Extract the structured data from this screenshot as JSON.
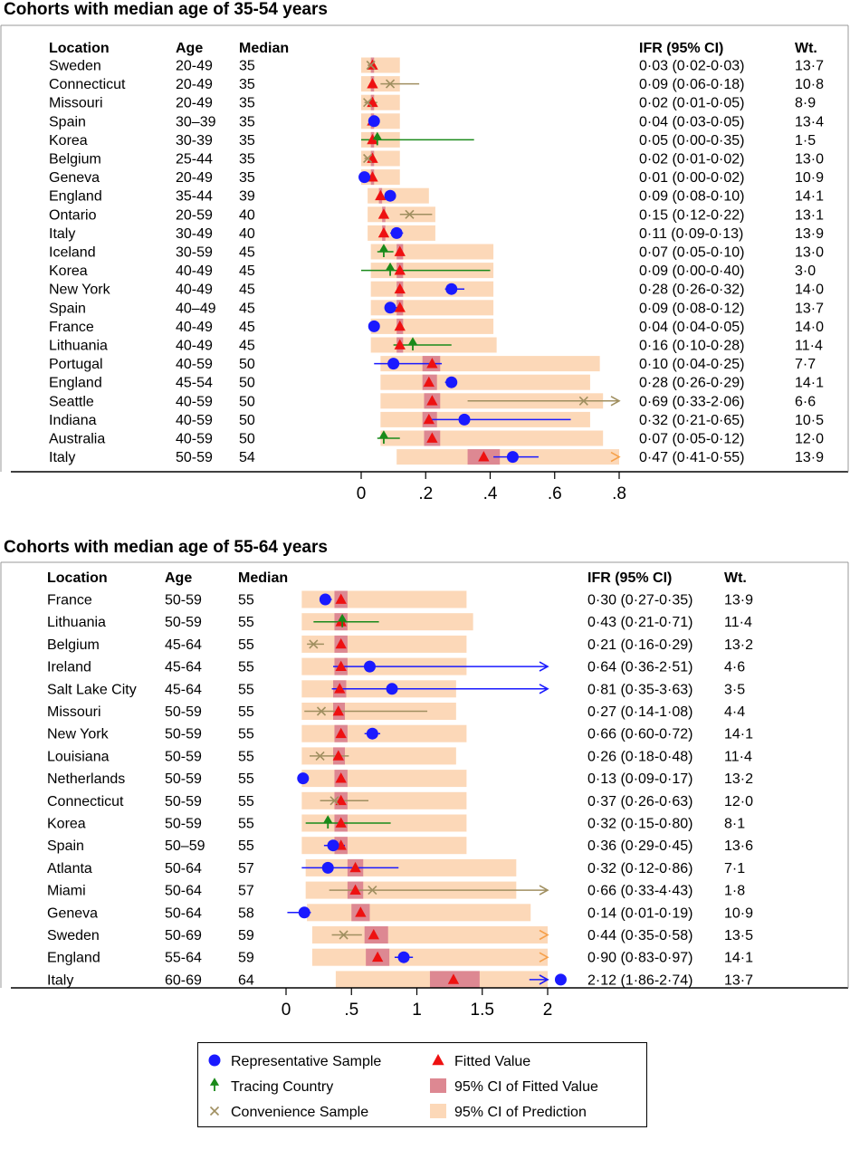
{
  "chart_data": [
    {
      "type": "forest",
      "title": "Cohorts with median age of 35-54 years",
      "columns": {
        "location": "Location",
        "age": "Age",
        "median": "Median",
        "ifr": "IFR (95% CI)",
        "wt": "Wt."
      },
      "xlim": [
        0,
        0.8
      ],
      "xticks": [
        {
          "value": 0,
          "label": "0"
        },
        {
          "value": 0.2,
          "label": ".2"
        },
        {
          "value": 0.4,
          "label": ".4"
        },
        {
          "value": 0.6,
          "label": ".6"
        },
        {
          "value": 0.8,
          "label": ".8"
        }
      ],
      "rows": [
        {
          "location": "Sweden",
          "age": "20-49",
          "median": "35",
          "ifr_text": "0·03 (0·02-0·03)",
          "wt": "13·7",
          "type": "convenience",
          "est": 0.03,
          "lo": 0.02,
          "hi": 0.03,
          "fit": 0.035,
          "fit_lo": 0.03,
          "fit_hi": 0.04,
          "pred_lo": 0.0,
          "pred_hi": 0.12
        },
        {
          "location": "Connecticut",
          "age": "20-49",
          "median": "35",
          "ifr_text": "0·09 (0·06-0·18)",
          "wt": "10·8",
          "type": "convenience",
          "est": 0.09,
          "lo": 0.06,
          "hi": 0.18,
          "fit": 0.035,
          "fit_lo": 0.03,
          "fit_hi": 0.04,
          "pred_lo": 0.0,
          "pred_hi": 0.12
        },
        {
          "location": "Missouri",
          "age": "20-49",
          "median": "35",
          "ifr_text": "0·02 (0·01-0·05)",
          "wt": "8·9",
          "type": "convenience",
          "est": 0.02,
          "lo": 0.01,
          "hi": 0.05,
          "fit": 0.035,
          "fit_lo": 0.03,
          "fit_hi": 0.04,
          "pred_lo": 0.0,
          "pred_hi": 0.12
        },
        {
          "location": "Spain",
          "age": "30–39",
          "median": "35",
          "ifr_text": "0·04 (0·03-0·05)",
          "wt": "13·4",
          "type": "representative",
          "est": 0.04,
          "lo": 0.03,
          "hi": 0.05,
          "fit": 0.035,
          "fit_lo": 0.03,
          "fit_hi": 0.04,
          "pred_lo": 0.0,
          "pred_hi": 0.12
        },
        {
          "location": "Korea",
          "age": "30-39",
          "median": "35",
          "ifr_text": "0·05 (0·00-0·35)",
          "wt": "1·5",
          "type": "tracing",
          "est": 0.05,
          "lo": 0.0,
          "hi": 0.35,
          "fit": 0.035,
          "fit_lo": 0.03,
          "fit_hi": 0.04,
          "pred_lo": 0.0,
          "pred_hi": 0.12
        },
        {
          "location": "Belgium",
          "age": "25-44",
          "median": "35",
          "ifr_text": "0·02 (0·01-0·02)",
          "wt": "13·0",
          "type": "convenience",
          "est": 0.02,
          "lo": 0.01,
          "hi": 0.02,
          "fit": 0.035,
          "fit_lo": 0.03,
          "fit_hi": 0.04,
          "pred_lo": 0.0,
          "pred_hi": 0.12
        },
        {
          "location": "Geneva",
          "age": "20-49",
          "median": "35",
          "ifr_text": "0·01 (0·00-0·02)",
          "wt": "10·9",
          "type": "representative",
          "est": 0.01,
          "lo": 0.0,
          "hi": 0.02,
          "fit": 0.035,
          "fit_lo": 0.03,
          "fit_hi": 0.04,
          "pred_lo": 0.0,
          "pred_hi": 0.12
        },
        {
          "location": "England",
          "age": "35-44",
          "median": "39",
          "ifr_text": "0·09 (0·08-0·10)",
          "wt": "14·1",
          "type": "representative",
          "est": 0.09,
          "lo": 0.08,
          "hi": 0.1,
          "fit": 0.06,
          "fit_lo": 0.055,
          "fit_hi": 0.065,
          "pred_lo": 0.02,
          "pred_hi": 0.21
        },
        {
          "location": "Ontario",
          "age": "20-59",
          "median": "40",
          "ifr_text": "0·15 (0·12-0·22)",
          "wt": "13·1",
          "type": "convenience",
          "est": 0.15,
          "lo": 0.12,
          "hi": 0.22,
          "fit": 0.07,
          "fit_lo": 0.065,
          "fit_hi": 0.075,
          "pred_lo": 0.02,
          "pred_hi": 0.23
        },
        {
          "location": "Italy",
          "age": "30-49",
          "median": "40",
          "ifr_text": "0·11 (0·09-0·13)",
          "wt": "13·9",
          "type": "representative",
          "est": 0.11,
          "lo": 0.09,
          "hi": 0.13,
          "fit": 0.07,
          "fit_lo": 0.065,
          "fit_hi": 0.075,
          "pred_lo": 0.02,
          "pred_hi": 0.23
        },
        {
          "location": "Iceland",
          "age": "30-59",
          "median": "45",
          "ifr_text": "0·07 (0·05-0·10)",
          "wt": "13·0",
          "type": "tracing",
          "est": 0.07,
          "lo": 0.05,
          "hi": 0.1,
          "fit": 0.12,
          "fit_lo": 0.11,
          "fit_hi": 0.13,
          "pred_lo": 0.03,
          "pred_hi": 0.41
        },
        {
          "location": "Korea",
          "age": "40-49",
          "median": "45",
          "ifr_text": "0·09 (0·00-0·40)",
          "wt": "3·0",
          "type": "tracing",
          "est": 0.09,
          "lo": 0.0,
          "hi": 0.4,
          "fit": 0.12,
          "fit_lo": 0.11,
          "fit_hi": 0.13,
          "pred_lo": 0.03,
          "pred_hi": 0.41
        },
        {
          "location": "New York",
          "age": "40-49",
          "median": "45",
          "ifr_text": "0·28 (0·26-0·32)",
          "wt": "14·0",
          "type": "representative",
          "est": 0.28,
          "lo": 0.26,
          "hi": 0.32,
          "fit": 0.12,
          "fit_lo": 0.11,
          "fit_hi": 0.13,
          "pred_lo": 0.03,
          "pred_hi": 0.41
        },
        {
          "location": "Spain",
          "age": "40–49",
          "median": "45",
          "ifr_text": "0·09 (0·08-0·12)",
          "wt": "13·7",
          "type": "representative",
          "est": 0.09,
          "lo": 0.08,
          "hi": 0.12,
          "fit": 0.12,
          "fit_lo": 0.11,
          "fit_hi": 0.13,
          "pred_lo": 0.03,
          "pred_hi": 0.41
        },
        {
          "location": "France",
          "age": "40-49",
          "median": "45",
          "ifr_text": "0·04 (0·04-0·05)",
          "wt": "14·0",
          "type": "representative",
          "est": 0.04,
          "lo": 0.04,
          "hi": 0.05,
          "fit": 0.12,
          "fit_lo": 0.11,
          "fit_hi": 0.13,
          "pred_lo": 0.03,
          "pred_hi": 0.41
        },
        {
          "location": "Lithuania",
          "age": "40-49",
          "median": "45",
          "ifr_text": "0·16 (0·10-0·28)",
          "wt": "11·4",
          "type": "tracing",
          "est": 0.16,
          "lo": 0.1,
          "hi": 0.28,
          "fit": 0.12,
          "fit_lo": 0.11,
          "fit_hi": 0.13,
          "pred_lo": 0.03,
          "pred_hi": 0.42
        },
        {
          "location": "Portugal",
          "age": "40-59",
          "median": "50",
          "ifr_text": "0·10 (0·04-0·25)",
          "wt": "7·7",
          "type": "representative",
          "est": 0.1,
          "lo": 0.04,
          "hi": 0.25,
          "fit": 0.22,
          "fit_lo": 0.19,
          "fit_hi": 0.245,
          "pred_lo": 0.06,
          "pred_hi": 0.74
        },
        {
          "location": "England",
          "age": "45-54",
          "median": "50",
          "ifr_text": "0·28 (0·26-0·29)",
          "wt": "14·1",
          "type": "representative",
          "est": 0.28,
          "lo": 0.26,
          "hi": 0.29,
          "fit": 0.21,
          "fit_lo": 0.19,
          "fit_hi": 0.235,
          "pred_lo": 0.06,
          "pred_hi": 0.71
        },
        {
          "location": "Seattle",
          "age": "40-59",
          "median": "50",
          "ifr_text": "0·69 (0·33-2·06)",
          "wt": "6·6",
          "type": "convenience",
          "est": 0.69,
          "lo": 0.33,
          "hi": 2.06,
          "fit": 0.22,
          "fit_lo": 0.195,
          "fit_hi": 0.245,
          "pred_lo": 0.06,
          "pred_hi": 0.75
        },
        {
          "location": "Indiana",
          "age": "40-59",
          "median": "50",
          "ifr_text": "0·32 (0·21-0·65)",
          "wt": "10·5",
          "type": "representative",
          "est": 0.32,
          "lo": 0.21,
          "hi": 0.65,
          "fit": 0.21,
          "fit_lo": 0.19,
          "fit_hi": 0.235,
          "pred_lo": 0.06,
          "pred_hi": 0.71
        },
        {
          "location": "Australia",
          "age": "40-59",
          "median": "50",
          "ifr_text": "0·07 (0·05-0·12)",
          "wt": "12·0",
          "type": "tracing",
          "est": 0.07,
          "lo": 0.05,
          "hi": 0.12,
          "fit": 0.22,
          "fit_lo": 0.195,
          "fit_hi": 0.245,
          "pred_lo": 0.06,
          "pred_hi": 0.75
        },
        {
          "location": "Italy",
          "age": "50-59",
          "median": "54",
          "ifr_text": "0·47 (0·41-0·55)",
          "wt": "13·9",
          "type": "representative",
          "est": 0.47,
          "lo": 0.41,
          "hi": 0.55,
          "fit": 0.38,
          "fit_lo": 0.33,
          "fit_hi": 0.43,
          "pred_lo": 0.11,
          "pred_hi": 1.3
        }
      ]
    },
    {
      "type": "forest",
      "title": "Cohorts with median age of 55-64 years",
      "columns": {
        "location": "Location",
        "age": "Age",
        "median": "Median",
        "ifr": "IFR (95% CI)",
        "wt": "Wt."
      },
      "xlim": [
        0,
        2
      ],
      "xticks": [
        {
          "value": 0,
          "label": "0"
        },
        {
          "value": 0.5,
          "label": ".5"
        },
        {
          "value": 1,
          "label": "1"
        },
        {
          "value": 1.5,
          "label": "1.5"
        },
        {
          "value": 2,
          "label": "2"
        }
      ],
      "rows": [
        {
          "location": "France",
          "age": "50-59",
          "median": "55",
          "ifr_text": "0·30 (0·27-0·35)",
          "wt": "13·9",
          "type": "representative",
          "est": 0.3,
          "lo": 0.27,
          "hi": 0.35,
          "fit": 0.42,
          "fit_lo": 0.37,
          "fit_hi": 0.47,
          "pred_lo": 0.12,
          "pred_hi": 1.38
        },
        {
          "location": "Lithuania",
          "age": "50-59",
          "median": "55",
          "ifr_text": "0·43 (0·21-0·71)",
          "wt": "11·4",
          "type": "tracing",
          "est": 0.43,
          "lo": 0.21,
          "hi": 0.71,
          "fit": 0.42,
          "fit_lo": 0.37,
          "fit_hi": 0.47,
          "pred_lo": 0.12,
          "pred_hi": 1.43
        },
        {
          "location": "Belgium",
          "age": "45-64",
          "median": "55",
          "ifr_text": "0·21 (0·16-0·29)",
          "wt": "13·2",
          "type": "convenience",
          "est": 0.21,
          "lo": 0.16,
          "hi": 0.29,
          "fit": 0.42,
          "fit_lo": 0.37,
          "fit_hi": 0.47,
          "pred_lo": 0.12,
          "pred_hi": 1.38
        },
        {
          "location": "Ireland",
          "age": "45-64",
          "median": "55",
          "ifr_text": "0·64 (0·36-2·51)",
          "wt": "4·6",
          "type": "representative",
          "est": 0.64,
          "lo": 0.36,
          "hi": 2.51,
          "fit": 0.42,
          "fit_lo": 0.37,
          "fit_hi": 0.47,
          "pred_lo": 0.12,
          "pred_hi": 1.38
        },
        {
          "location": "Salt Lake City",
          "age": "45-64",
          "median": "55",
          "ifr_text": "0·81 (0·35-3·63)",
          "wt": "3·5",
          "type": "representative",
          "est": 0.81,
          "lo": 0.35,
          "hi": 3.63,
          "fit": 0.41,
          "fit_lo": 0.36,
          "fit_hi": 0.46,
          "pred_lo": 0.12,
          "pred_hi": 1.3
        },
        {
          "location": "Missouri",
          "age": "50-59",
          "median": "55",
          "ifr_text": "0·27 (0·14-1·08)",
          "wt": "4·4",
          "type": "convenience",
          "est": 0.27,
          "lo": 0.14,
          "hi": 1.08,
          "fit": 0.4,
          "fit_lo": 0.36,
          "fit_hi": 0.45,
          "pred_lo": 0.12,
          "pred_hi": 1.3
        },
        {
          "location": "New York",
          "age": "50-59",
          "median": "55",
          "ifr_text": "0·66 (0·60-0·72)",
          "wt": "14·1",
          "type": "representative",
          "est": 0.66,
          "lo": 0.6,
          "hi": 0.72,
          "fit": 0.42,
          "fit_lo": 0.37,
          "fit_hi": 0.47,
          "pred_lo": 0.12,
          "pred_hi": 1.38
        },
        {
          "location": "Louisiana",
          "age": "50-59",
          "median": "55",
          "ifr_text": "0·26 (0·18-0·48)",
          "wt": "11·4",
          "type": "convenience",
          "est": 0.26,
          "lo": 0.18,
          "hi": 0.48,
          "fit": 0.4,
          "fit_lo": 0.36,
          "fit_hi": 0.45,
          "pred_lo": 0.12,
          "pred_hi": 1.3
        },
        {
          "location": "Netherlands",
          "age": "50-59",
          "median": "55",
          "ifr_text": "0·13 (0·09-0·17)",
          "wt": "13·2",
          "type": "representative",
          "est": 0.13,
          "lo": 0.09,
          "hi": 0.17,
          "fit": 0.42,
          "fit_lo": 0.37,
          "fit_hi": 0.47,
          "pred_lo": 0.12,
          "pred_hi": 1.38
        },
        {
          "location": "Connecticut",
          "age": "50-59",
          "median": "55",
          "ifr_text": "0·37 (0·26-0·63)",
          "wt": "12·0",
          "type": "convenience",
          "est": 0.37,
          "lo": 0.26,
          "hi": 0.63,
          "fit": 0.42,
          "fit_lo": 0.37,
          "fit_hi": 0.47,
          "pred_lo": 0.12,
          "pred_hi": 1.38
        },
        {
          "location": "Korea",
          "age": "50-59",
          "median": "55",
          "ifr_text": "0·32 (0·15-0·80)",
          "wt": "8·1",
          "type": "tracing",
          "est": 0.32,
          "lo": 0.15,
          "hi": 0.8,
          "fit": 0.42,
          "fit_lo": 0.37,
          "fit_hi": 0.47,
          "pred_lo": 0.12,
          "pred_hi": 1.38
        },
        {
          "location": "Spain",
          "age": "50–59",
          "median": "55",
          "ifr_text": "0·36 (0·29-0·45)",
          "wt": "13·6",
          "type": "representative",
          "est": 0.36,
          "lo": 0.29,
          "hi": 0.45,
          "fit": 0.42,
          "fit_lo": 0.37,
          "fit_hi": 0.47,
          "pred_lo": 0.12,
          "pred_hi": 1.38
        },
        {
          "location": "Atlanta",
          "age": "50-64",
          "median": "57",
          "ifr_text": "0·32 (0·12-0·86)",
          "wt": "7·1",
          "type": "representative",
          "est": 0.32,
          "lo": 0.12,
          "hi": 0.86,
          "fit": 0.53,
          "fit_lo": 0.47,
          "fit_hi": 0.59,
          "pred_lo": 0.15,
          "pred_hi": 1.76
        },
        {
          "location": "Miami",
          "age": "50-64",
          "median": "57",
          "ifr_text": "0·66 (0·33-4·43)",
          "wt": "1·8",
          "type": "convenience",
          "est": 0.66,
          "lo": 0.33,
          "hi": 4.43,
          "fit": 0.53,
          "fit_lo": 0.47,
          "fit_hi": 0.59,
          "pred_lo": 0.15,
          "pred_hi": 1.76
        },
        {
          "location": "Geneva",
          "age": "50-64",
          "median": "58",
          "ifr_text": "0·14 (0·01-0·19)",
          "wt": "10·9",
          "type": "representative",
          "est": 0.14,
          "lo": 0.01,
          "hi": 0.19,
          "fit": 0.57,
          "fit_lo": 0.5,
          "fit_hi": 0.64,
          "pred_lo": 0.16,
          "pred_hi": 1.87
        },
        {
          "location": "Sweden",
          "age": "50-69",
          "median": "59",
          "ifr_text": "0·44 (0·35-0·58)",
          "wt": "13·5",
          "type": "convenience",
          "est": 0.44,
          "lo": 0.35,
          "hi": 0.58,
          "fit": 0.67,
          "fit_lo": 0.6,
          "fit_hi": 0.78,
          "pred_lo": 0.2,
          "pred_hi": 2.2
        },
        {
          "location": "England",
          "age": "55-64",
          "median": "59",
          "ifr_text": "0·90 (0·83-0·97)",
          "wt": "14·1",
          "type": "representative",
          "est": 0.9,
          "lo": 0.83,
          "hi": 0.97,
          "fit": 0.7,
          "fit_lo": 0.61,
          "fit_hi": 0.79,
          "pred_lo": 0.2,
          "pred_hi": 2.2
        },
        {
          "location": "Italy",
          "age": "60-69",
          "median": "64",
          "ifr_text": "2·12 (1·86-2·74)",
          "wt": "13·7",
          "type": "representative",
          "est": 2.12,
          "lo": 1.86,
          "hi": 2.74,
          "fit": 1.28,
          "fit_lo": 1.1,
          "fit_hi": 1.48,
          "pred_lo": 0.38,
          "pred_hi": 4.2
        }
      ]
    }
  ],
  "legend": {
    "items": [
      {
        "label": "Representative Sample",
        "symbol": "circle"
      },
      {
        "label": "Fitted Value",
        "symbol": "triangle"
      },
      {
        "label": "Tracing Country",
        "symbol": "arrow-up"
      },
      {
        "label": "95% CI of Fitted Value",
        "symbol": "fit-box"
      },
      {
        "label": "Convenience Sample",
        "symbol": "cross"
      },
      {
        "label": "95% CI of Prediction",
        "symbol": "pred-box"
      }
    ]
  },
  "colors": {
    "representative": "#1a1aff",
    "tracing": "#1a8a1a",
    "convenience": "#a08f60",
    "fitted": "#ee1111",
    "fit_ci": "#dd8892",
    "prediction": "#fcd8b8",
    "overflow_arrow": "#f6a04a"
  }
}
